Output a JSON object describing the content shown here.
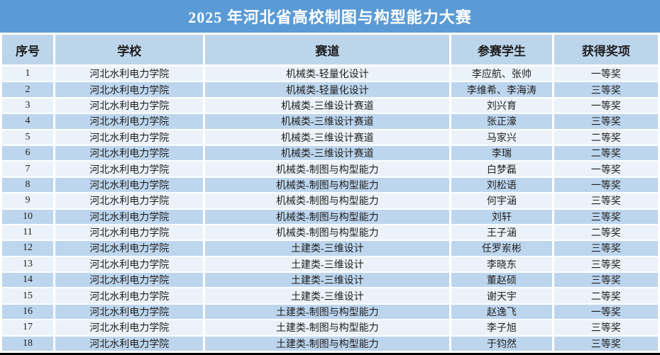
{
  "title": {
    "text": "2025 年河北省高校制图与构型能力大赛"
  },
  "table": {
    "columns": [
      "序号",
      "学校",
      "赛道",
      "参赛学生",
      "获得奖项"
    ],
    "rows": [
      {
        "no": "1",
        "school": "河北水利电力学院",
        "track": "机械类-轻量化设计",
        "students": "李应航、张帅",
        "award": "一等奖"
      },
      {
        "no": "2",
        "school": "河北水利电力学院",
        "track": "机械类-轻量化设计",
        "students": "李维希、李海涛",
        "award": "三等奖"
      },
      {
        "no": "3",
        "school": "河北水利电力学院",
        "track": "机械类-三维设计赛道",
        "students": "刘兴育",
        "award": "一等奖"
      },
      {
        "no": "4",
        "school": "河北水利电力学院",
        "track": "机械类-三维设计赛道",
        "students": "张正濠",
        "award": "三等奖"
      },
      {
        "no": "5",
        "school": "河北水利电力学院",
        "track": "机械类-三维设计赛道",
        "students": "马家兴",
        "award": "二等奖"
      },
      {
        "no": "6",
        "school": "河北水利电力学院",
        "track": "机械类-三维设计赛道",
        "students": "李瑞",
        "award": "二等奖"
      },
      {
        "no": "7",
        "school": "河北水利电力学院",
        "track": "机械类-制图与构型能力",
        "students": "白梦磊",
        "award": "一等奖"
      },
      {
        "no": "8",
        "school": "河北水利电力学院",
        "track": "机械类-制图与构型能力",
        "students": "刘松语",
        "award": "一等奖"
      },
      {
        "no": "9",
        "school": "河北水利电力学院",
        "track": "机械类-制图与构型能力",
        "students": "何宇涵",
        "award": "三等奖"
      },
      {
        "no": "10",
        "school": "河北水利电力学院",
        "track": "机械类-制图与构型能力",
        "students": "刘轩",
        "award": "三等奖"
      },
      {
        "no": "11",
        "school": "河北水利电力学院",
        "track": "机械类-制图与构型能力",
        "students": "王子涵",
        "award": "二等奖"
      },
      {
        "no": "12",
        "school": "河北水利电力学院",
        "track": "土建类-三维设计",
        "students": "任罗岽彬",
        "award": "三等奖"
      },
      {
        "no": "13",
        "school": "河北水利电力学院",
        "track": "土建类-三维设计",
        "students": "李晓东",
        "award": "三等奖"
      },
      {
        "no": "14",
        "school": "河北水利电力学院",
        "track": "土建类-三维设计",
        "students": "董赵硕",
        "award": "三等奖"
      },
      {
        "no": "15",
        "school": "河北水利电力学院",
        "track": "土建类-三维设计",
        "students": "谢天宇",
        "award": "二等奖"
      },
      {
        "no": "16",
        "school": "河北水利电力学院",
        "track": "土建类-制图与构型能力",
        "students": "赵逸飞",
        "award": "一等奖"
      },
      {
        "no": "17",
        "school": "河北水利电力学院",
        "track": "土建类-制图与构型能力",
        "students": "李子旭",
        "award": "三等奖"
      },
      {
        "no": "18",
        "school": "河北水利电力学院",
        "track": "土建类-制图与构型能力",
        "students": "于钧然",
        "award": "三等奖"
      }
    ]
  },
  "colors": {
    "title_bg": "#5B9BD5",
    "title_text": "#FFFFFF",
    "header_bg": "#BCD5EB",
    "row_odd_bg": "#EBF2F9",
    "row_even_bg": "#BDD6EE",
    "separator": "#FFFFFF",
    "bottom_border": "#000000",
    "body_text": "#1F1F1F"
  }
}
